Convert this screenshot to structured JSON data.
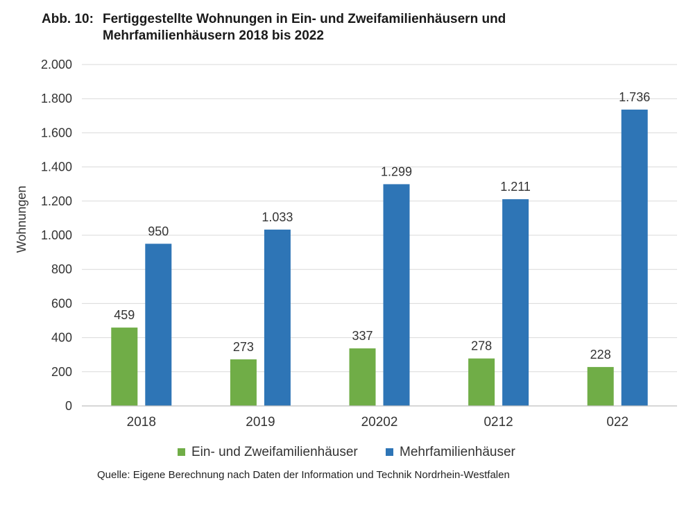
{
  "figure": {
    "title_prefix": "Abb. 10:",
    "title_text": "Fertiggestellte Wohnungen in Ein- und Zweifamilienhäusern und Mehrfamilienhäusern 2018 bis 2022",
    "source": "Quelle: Eigene Berechnung nach Daten der Information und Technik Nordrhein-Westfalen"
  },
  "chart_data": {
    "type": "bar",
    "title": "Fertiggestellte Wohnungen in Ein- und Zweifamilienhäusern und Mehrfamilienhäusern 2018 bis 2022",
    "ylabel": "Wohnungen",
    "xlabel": "",
    "categories": [
      "2018",
      "2019",
      "20202",
      "0212",
      "022"
    ],
    "series": [
      {
        "name": "Ein- und Zweifamilienhäuser",
        "color": "#70ad47",
        "values": [
          459,
          273,
          337,
          278,
          228
        ],
        "labels": [
          "459",
          "273",
          "337",
          "278",
          "228"
        ]
      },
      {
        "name": "Mehrfamilienhäuser",
        "color": "#2e75b6",
        "values": [
          950,
          1033,
          1299,
          1211,
          1736
        ],
        "labels": [
          "950",
          "1.033",
          "1.299",
          "1.211",
          "1.736"
        ]
      }
    ],
    "ylim": [
      0,
      2000
    ],
    "yticks": [
      0,
      200,
      400,
      600,
      800,
      1000,
      1200,
      1400,
      1600,
      1800,
      2000
    ],
    "ytick_labels": [
      "0",
      "200",
      "400",
      "600",
      "800",
      "1.000",
      "1.200",
      "1.400",
      "1.600",
      "1.800",
      "2.000"
    ],
    "grid": true,
    "legend_position": "bottom"
  }
}
